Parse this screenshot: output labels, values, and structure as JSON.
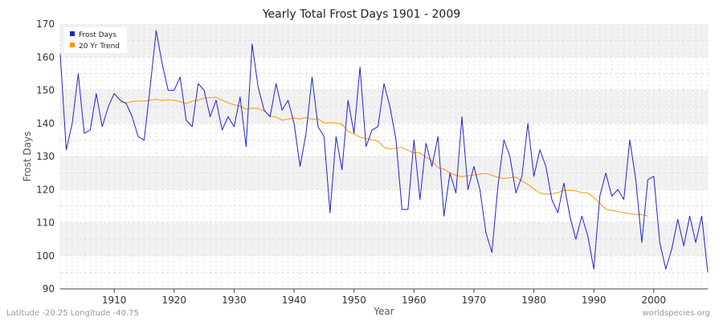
{
  "chart_data": {
    "type": "line",
    "title": "Yearly Total Frost Days 1901 - 2009",
    "xlabel": "Year",
    "ylabel": "Frost Days",
    "xlim": [
      1901,
      2009
    ],
    "ylim": [
      90,
      170
    ],
    "x_ticks": [
      1910,
      1920,
      1930,
      1940,
      1950,
      1960,
      1970,
      1980,
      1990,
      2000
    ],
    "y_ticks": [
      90,
      100,
      110,
      120,
      130,
      140,
      150,
      160,
      170
    ],
    "grid": true,
    "legend_position": "top-left",
    "series": [
      {
        "name": "Frost Days",
        "color": "#2222cc",
        "x": [
          1901,
          1902,
          1903,
          1904,
          1905,
          1906,
          1907,
          1908,
          1909,
          1910,
          1911,
          1912,
          1913,
          1914,
          1915,
          1916,
          1917,
          1918,
          1919,
          1920,
          1921,
          1922,
          1923,
          1924,
          1925,
          1926,
          1927,
          1928,
          1929,
          1930,
          1931,
          1932,
          1933,
          1934,
          1935,
          1936,
          1937,
          1938,
          1939,
          1940,
          1941,
          1942,
          1943,
          1944,
          1945,
          1946,
          1947,
          1948,
          1949,
          1950,
          1951,
          1952,
          1953,
          1954,
          1955,
          1956,
          1957,
          1958,
          1959,
          1960,
          1961,
          1962,
          1963,
          1964,
          1965,
          1966,
          1967,
          1968,
          1969,
          1970,
          1971,
          1972,
          1973,
          1974,
          1975,
          1976,
          1977,
          1978,
          1979,
          1980,
          1981,
          1982,
          1983,
          1984,
          1985,
          1986,
          1987,
          1988,
          1989,
          1990,
          1991,
          1992,
          1993,
          1994,
          1995,
          1996,
          1997,
          1998,
          1999,
          2000,
          2001,
          2002,
          2003,
          2004,
          2005,
          2006,
          2007,
          2008,
          2009
        ],
        "values": [
          161,
          132,
          140,
          155,
          137,
          138,
          149,
          139,
          145,
          149,
          147,
          146,
          142,
          136,
          135,
          151,
          168,
          158,
          150,
          150,
          154,
          141,
          139,
          152,
          150,
          142,
          147,
          138,
          142,
          139,
          148,
          133,
          164,
          151,
          144,
          142,
          152,
          144,
          147,
          140,
          127,
          137,
          154,
          139,
          136,
          113,
          136,
          126,
          147,
          137,
          157,
          133,
          138,
          139,
          152,
          145,
          135,
          114,
          114,
          135,
          117,
          134,
          127,
          136,
          112,
          125,
          119,
          142,
          120,
          127,
          120,
          107,
          101,
          121,
          135,
          130,
          119,
          124,
          140,
          124,
          132,
          127,
          117,
          113,
          122,
          112,
          105,
          112,
          106,
          96,
          118,
          125,
          118,
          120,
          117,
          135,
          123,
          104,
          123,
          124,
          104,
          96,
          102,
          111,
          103,
          112,
          104,
          112,
          95
        ]
      },
      {
        "name": "20 Yr Trend",
        "color": "#ff9900",
        "x": [
          1911,
          1912,
          1913,
          1914,
          1915,
          1916,
          1917,
          1918,
          1919,
          1920,
          1921,
          1922,
          1923,
          1924,
          1925,
          1926,
          1927,
          1928,
          1929,
          1930,
          1931,
          1932,
          1933,
          1934,
          1935,
          1936,
          1937,
          1938,
          1939,
          1940,
          1941,
          1942,
          1943,
          1944,
          1945,
          1946,
          1947,
          1948,
          1949,
          1950,
          1951,
          1952,
          1953,
          1954,
          1955,
          1956,
          1957,
          1958,
          1959,
          1960,
          1961,
          1962,
          1963,
          1964,
          1965,
          1966,
          1967,
          1968,
          1969,
          1970,
          1971,
          1972,
          1973,
          1974,
          1975,
          1976,
          1977,
          1978,
          1979,
          1980,
          1981,
          1982,
          1983,
          1984,
          1985,
          1986,
          1987,
          1988,
          1989,
          1990,
          1991,
          1992,
          1993,
          1994,
          1995,
          1996,
          1997,
          1998,
          1999
        ],
        "values": [
          146.5,
          146.2,
          146.6,
          146.8,
          146.7,
          147.0,
          147.3,
          146.9,
          147.1,
          147.0,
          146.6,
          146.0,
          146.7,
          147.0,
          147.6,
          147.8,
          147.9,
          147.0,
          146.2,
          145.6,
          145.2,
          144.3,
          144.6,
          144.5,
          143.8,
          142.2,
          141.9,
          141.0,
          141.3,
          141.6,
          141.3,
          141.8,
          141.2,
          141.4,
          140.1,
          140.2,
          140.1,
          139.7,
          137.6,
          136.9,
          135.8,
          135.5,
          135.1,
          134.6,
          132.8,
          132.3,
          132.5,
          132.8,
          131.8,
          131.1,
          131.1,
          129.8,
          128.7,
          126.6,
          126.2,
          125.1,
          124.3,
          123.9,
          124.2,
          124.4,
          124.7,
          124.9,
          124.3,
          123.7,
          123.3,
          123.6,
          123.8,
          122.6,
          121.6,
          120.2,
          119.0,
          118.6,
          118.7,
          119.1,
          119.7,
          119.8,
          119.6,
          119.1,
          119.0,
          117.6,
          115.9,
          114.1,
          113.7,
          113.4,
          113.1,
          112.7,
          112.5,
          112.5,
          112.0
        ]
      }
    ]
  },
  "footer": {
    "left": "Latitude -20.25 Longitude -40.75",
    "right": "worldspecies.org"
  }
}
